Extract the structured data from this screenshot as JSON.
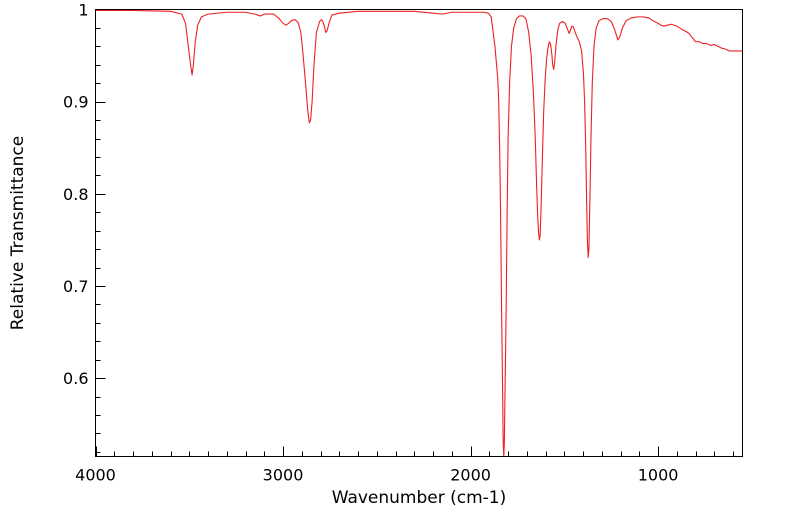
{
  "chart_data": {
    "type": "line",
    "title": "",
    "xlabel": "Wavenumber (cm-1)",
    "ylabel": "Relative Transmittance",
    "xlim": [
      4000,
      550
    ],
    "ylim": [
      0.515,
      1.0
    ],
    "x_reversed": true,
    "x_ticks": [
      4000,
      3000,
      2000,
      1000
    ],
    "x_tick_labels": [
      "4000",
      "3000",
      "2000",
      "1000"
    ],
    "y_ticks": [
      0.6,
      0.7,
      0.8,
      0.9,
      1.0
    ],
    "y_tick_labels": [
      "0.6",
      "0.7",
      "0.8",
      "0.9",
      "1"
    ],
    "x_minor_step": 100,
    "y_minor_step": 0.02,
    "grid": false,
    "legend": "none",
    "series": [
      {
        "color": "#ee2020",
        "points": [
          [
            4000,
            0.999
          ],
          [
            3800,
            0.999
          ],
          [
            3600,
            0.998
          ],
          [
            3540,
            0.995
          ],
          [
            3520,
            0.985
          ],
          [
            3505,
            0.96
          ],
          [
            3493,
            0.94
          ],
          [
            3485,
            0.929
          ],
          [
            3478,
            0.94
          ],
          [
            3468,
            0.965
          ],
          [
            3455,
            0.983
          ],
          [
            3435,
            0.992
          ],
          [
            3400,
            0.995
          ],
          [
            3300,
            0.997
          ],
          [
            3200,
            0.997
          ],
          [
            3150,
            0.995
          ],
          [
            3120,
            0.993
          ],
          [
            3100,
            0.995
          ],
          [
            3050,
            0.995
          ],
          [
            3020,
            0.99
          ],
          [
            3000,
            0.985
          ],
          [
            2985,
            0.983
          ],
          [
            2970,
            0.985
          ],
          [
            2955,
            0.988
          ],
          [
            2935,
            0.989
          ],
          [
            2920,
            0.986
          ],
          [
            2905,
            0.975
          ],
          [
            2895,
            0.955
          ],
          [
            2880,
            0.92
          ],
          [
            2868,
            0.89
          ],
          [
            2860,
            0.877
          ],
          [
            2853,
            0.88
          ],
          [
            2845,
            0.9
          ],
          [
            2835,
            0.94
          ],
          [
            2822,
            0.975
          ],
          [
            2805,
            0.987
          ],
          [
            2795,
            0.989
          ],
          [
            2788,
            0.987
          ],
          [
            2780,
            0.982
          ],
          [
            2772,
            0.975
          ],
          [
            2765,
            0.977
          ],
          [
            2755,
            0.985
          ],
          [
            2740,
            0.994
          ],
          [
            2700,
            0.996
          ],
          [
            2600,
            0.998
          ],
          [
            2500,
            0.998
          ],
          [
            2400,
            0.998
          ],
          [
            2300,
            0.998
          ],
          [
            2200,
            0.996
          ],
          [
            2150,
            0.995
          ],
          [
            2100,
            0.997
          ],
          [
            2000,
            0.997
          ],
          [
            1930,
            0.997
          ],
          [
            1905,
            0.996
          ],
          [
            1890,
            0.992
          ],
          [
            1870,
            0.96
          ],
          [
            1855,
            0.925
          ],
          [
            1850,
            0.9
          ],
          [
            1845,
            0.85
          ],
          [
            1840,
            0.78
          ],
          [
            1835,
            0.68
          ],
          [
            1830,
            0.6
          ],
          [
            1826,
            0.53
          ],
          [
            1823,
            0.515
          ],
          [
            1820,
            0.53
          ],
          [
            1816,
            0.59
          ],
          [
            1810,
            0.68
          ],
          [
            1805,
            0.78
          ],
          [
            1800,
            0.86
          ],
          [
            1792,
            0.92
          ],
          [
            1782,
            0.96
          ],
          [
            1770,
            0.98
          ],
          [
            1755,
            0.99
          ],
          [
            1740,
            0.993
          ],
          [
            1720,
            0.993
          ],
          [
            1705,
            0.99
          ],
          [
            1690,
            0.975
          ],
          [
            1677,
            0.95
          ],
          [
            1665,
            0.91
          ],
          [
            1655,
            0.86
          ],
          [
            1648,
            0.81
          ],
          [
            1642,
            0.775
          ],
          [
            1637,
            0.757
          ],
          [
            1633,
            0.75
          ],
          [
            1629,
            0.755
          ],
          [
            1624,
            0.785
          ],
          [
            1617,
            0.84
          ],
          [
            1610,
            0.89
          ],
          [
            1602,
            0.925
          ],
          [
            1595,
            0.945
          ],
          [
            1588,
            0.958
          ],
          [
            1580,
            0.965
          ],
          [
            1574,
            0.963
          ],
          [
            1567,
            0.952
          ],
          [
            1562,
            0.94
          ],
          [
            1557,
            0.935
          ],
          [
            1552,
            0.942
          ],
          [
            1545,
            0.96
          ],
          [
            1535,
            0.978
          ],
          [
            1525,
            0.985
          ],
          [
            1510,
            0.987
          ],
          [
            1495,
            0.985
          ],
          [
            1482,
            0.978
          ],
          [
            1474,
            0.974
          ],
          [
            1467,
            0.978
          ],
          [
            1460,
            0.982
          ],
          [
            1452,
            0.981
          ],
          [
            1442,
            0.975
          ],
          [
            1432,
            0.97
          ],
          [
            1420,
            0.965
          ],
          [
            1408,
            0.955
          ],
          [
            1398,
            0.93
          ],
          [
            1392,
            0.9
          ],
          [
            1386,
            0.85
          ],
          [
            1381,
            0.79
          ],
          [
            1377,
            0.75
          ],
          [
            1373,
            0.731
          ],
          [
            1369,
            0.74
          ],
          [
            1364,
            0.79
          ],
          [
            1358,
            0.86
          ],
          [
            1351,
            0.92
          ],
          [
            1342,
            0.96
          ],
          [
            1330,
            0.98
          ],
          [
            1315,
            0.988
          ],
          [
            1295,
            0.99
          ],
          [
            1270,
            0.99
          ],
          [
            1250,
            0.987
          ],
          [
            1235,
            0.98
          ],
          [
            1222,
            0.972
          ],
          [
            1215,
            0.967
          ],
          [
            1205,
            0.97
          ],
          [
            1190,
            0.98
          ],
          [
            1170,
            0.988
          ],
          [
            1140,
            0.991
          ],
          [
            1110,
            0.992
          ],
          [
            1080,
            0.992
          ],
          [
            1050,
            0.991
          ],
          [
            1030,
            0.988
          ],
          [
            1000,
            0.985
          ],
          [
            985,
            0.983
          ],
          [
            970,
            0.982
          ],
          [
            950,
            0.983
          ],
          [
            930,
            0.984
          ],
          [
            900,
            0.982
          ],
          [
            870,
            0.978
          ],
          [
            850,
            0.976
          ],
          [
            835,
            0.974
          ],
          [
            820,
            0.97
          ],
          [
            800,
            0.965
          ],
          [
            780,
            0.965
          ],
          [
            760,
            0.963
          ],
          [
            740,
            0.963
          ],
          [
            720,
            0.961
          ],
          [
            700,
            0.962
          ],
          [
            680,
            0.96
          ],
          [
            660,
            0.958
          ],
          [
            640,
            0.957
          ],
          [
            620,
            0.955
          ],
          [
            600,
            0.955
          ],
          [
            580,
            0.955
          ],
          [
            560,
            0.955
          ],
          [
            550,
            0.955
          ]
        ]
      }
    ]
  }
}
